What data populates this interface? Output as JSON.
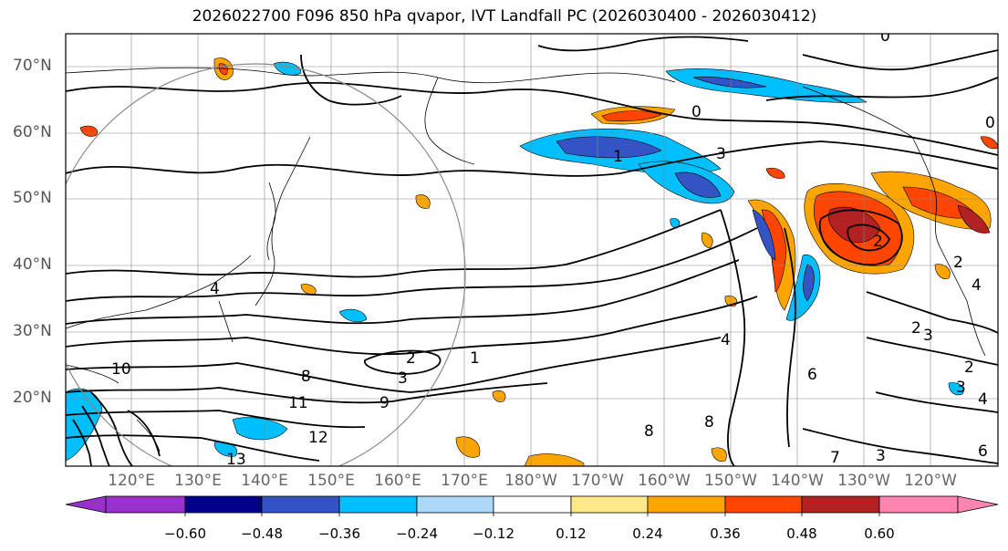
{
  "title": "2026022700 F096 850 hPa qvapor, IVT Landfall PC (2026030400 - 2026030412)",
  "lat_labels": [
    "70°N",
    "60°N",
    "50°N",
    "40°N",
    "30°N",
    "20°N"
  ],
  "lon_labels": [
    "120°E",
    "130°E",
    "140°E",
    "150°E",
    "160°E",
    "170°E",
    "180°W",
    "170°W",
    "160°W",
    "150°W",
    "140°W",
    "130°W",
    "120°W"
  ],
  "colorbar": {
    "colors": [
      "#9932cc",
      "#00008b",
      "#3454c6",
      "#00bfff",
      "#add8fa",
      "#ffffff",
      "#ffe989",
      "#ffa500",
      "#ff4500",
      "#b22222",
      "#ff85b0"
    ],
    "tick_labels": [
      "−0.60",
      "−0.48",
      "−0.36",
      "−0.24",
      "−0.12",
      "0.12",
      "0.24",
      "0.36",
      "0.48",
      "0.60"
    ]
  },
  "contour_labels": [
    "0",
    "0",
    "0",
    "1",
    "2",
    "2",
    "3",
    "3",
    "4",
    "6",
    "8",
    "9",
    "10",
    "11",
    "12",
    "13",
    "2",
    "3",
    "2",
    "3",
    "4",
    "4",
    "6",
    "7",
    "8",
    "8",
    "1",
    "4",
    "3",
    "2"
  ]
}
